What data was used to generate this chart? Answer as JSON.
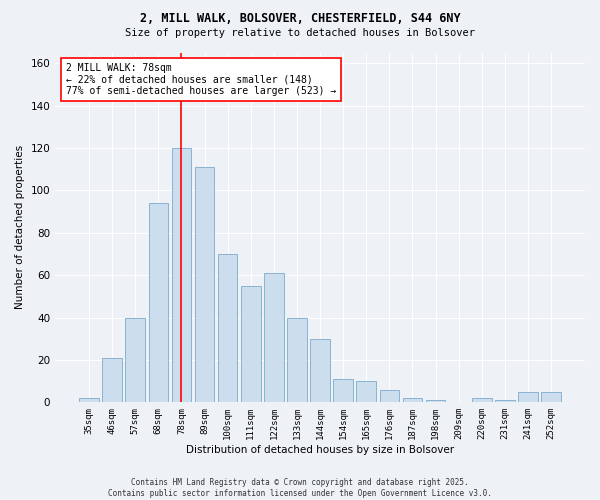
{
  "title1": "2, MILL WALK, BOLSOVER, CHESTERFIELD, S44 6NY",
  "title2": "Size of property relative to detached houses in Bolsover",
  "xlabel": "Distribution of detached houses by size in Bolsover",
  "ylabel": "Number of detached properties",
  "categories": [
    "35sqm",
    "46sqm",
    "57sqm",
    "68sqm",
    "78sqm",
    "89sqm",
    "100sqm",
    "111sqm",
    "122sqm",
    "133sqm",
    "144sqm",
    "154sqm",
    "165sqm",
    "176sqm",
    "187sqm",
    "198sqm",
    "209sqm",
    "220sqm",
    "231sqm",
    "241sqm",
    "252sqm"
  ],
  "values": [
    2,
    21,
    40,
    94,
    120,
    111,
    70,
    55,
    61,
    40,
    30,
    11,
    10,
    6,
    2,
    1,
    0,
    2,
    1,
    5,
    5
  ],
  "bar_color": "#ccdded",
  "bar_edge_color": "#7aabcc",
  "redline_index": 4,
  "annotation_text": "2 MILL WALK: 78sqm\n← 22% of detached houses are smaller (148)\n77% of semi-detached houses are larger (523) →",
  "annotation_box_color": "white",
  "annotation_box_edge_color": "red",
  "redline_color": "red",
  "ylim": [
    0,
    165
  ],
  "yticks": [
    0,
    20,
    40,
    60,
    80,
    100,
    120,
    140,
    160
  ],
  "footer": "Contains HM Land Registry data © Crown copyright and database right 2025.\nContains public sector information licensed under the Open Government Licence v3.0.",
  "background_color": "#eef2f7",
  "grid_color": "white"
}
